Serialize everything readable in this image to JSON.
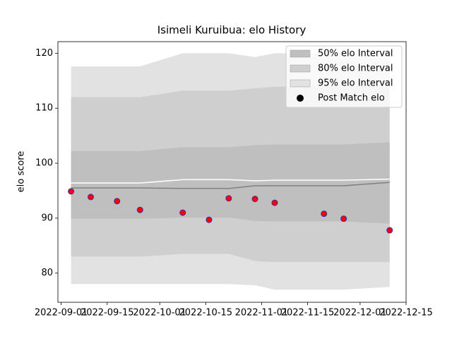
{
  "chart_data": {
    "type": "band",
    "title": "Isimeli Kuruibua: elo History",
    "ylabel": "elo score",
    "x": [
      "2022-09-04",
      "2022-09-10",
      "2022-09-18",
      "2022-09-25",
      "2022-10-08",
      "2022-10-16",
      "2022-10-22",
      "2022-10-30",
      "2022-11-05",
      "2022-11-20",
      "2022-11-26",
      "2022-12-10"
    ],
    "xlim": [
      "2022-08-31",
      "2022-12-15"
    ],
    "xticks": [
      "2022-09-01",
      "2022-09-15",
      "2022-10-01",
      "2022-10-15",
      "2022-11-01",
      "2022-11-15",
      "2022-12-01",
      "2022-12-15"
    ],
    "ylim": [
      74.7,
      122.1
    ],
    "yticks": [
      80,
      90,
      100,
      110,
      120
    ],
    "bands": [
      {
        "name": "95% elo Interval",
        "color": "#e2e2e2",
        "upper": [
          117.6,
          117.6,
          117.6,
          117.6,
          120,
          120,
          120,
          119.3,
          120,
          120,
          120,
          120
        ],
        "lower": [
          78,
          78,
          78,
          78,
          78,
          78,
          78,
          77.8,
          77,
          77,
          77,
          77.5
        ]
      },
      {
        "name": "80% elo Interval",
        "color": "#cfcfcf",
        "upper": [
          112,
          112,
          112,
          112,
          113.2,
          113.2,
          113.2,
          113.6,
          113.9,
          114,
          114,
          114.2
        ],
        "lower": [
          83,
          83,
          83,
          83,
          83.5,
          83.5,
          83.5,
          82.2,
          82,
          82,
          82,
          82
        ]
      },
      {
        "name": "50% elo Interval",
        "color": "#bfbfbf",
        "upper": [
          102.2,
          102.2,
          102.2,
          102.2,
          102.9,
          102.9,
          102.9,
          103.3,
          103.4,
          103.4,
          103.4,
          103.8
        ],
        "lower": [
          89.9,
          89.9,
          89.9,
          89.9,
          90.1,
          90.1,
          90.1,
          89.5,
          89.4,
          89.4,
          89.4,
          89
        ]
      }
    ],
    "lines": [
      {
        "color": "#ffffff",
        "values": [
          96.4,
          96.4,
          96.4,
          96.4,
          97,
          97,
          97,
          96.8,
          96.9,
          96.9,
          96.9,
          97.1
        ]
      },
      {
        "color": "#808080",
        "values": [
          95.5,
          95.5,
          95.5,
          95.5,
          95.4,
          95.4,
          95.4,
          95.9,
          95.9,
          95.9,
          95.9,
          96.5
        ]
      }
    ],
    "points": {
      "name": "Post Match elo",
      "color": "#ff0000",
      "edgecolor": "#3a2fa0",
      "values": [
        94.87,
        93.85,
        93.1,
        91.5,
        91.0,
        89.7,
        93.6,
        93.5,
        92.8,
        90.8,
        89.9,
        87.8
      ]
    },
    "legend": "upper right"
  }
}
